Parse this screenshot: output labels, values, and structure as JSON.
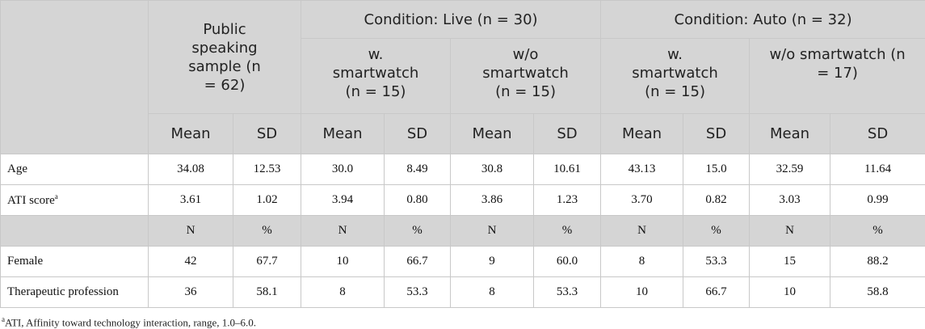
{
  "table": {
    "corner": "",
    "groups": [
      "Public speaking sample (n = 62)",
      "Condition: Live (n = 30)",
      "Condition: Auto (n = 32)"
    ],
    "subgroups": [
      "w. smartwatch (n = 15)",
      "w/o smartwatch (n = 15)",
      "w. smartwatch (n = 15)",
      "w/o smartwatch (n = 17)"
    ],
    "stats": [
      "Mean",
      "SD",
      "Mean",
      "SD",
      "Mean",
      "SD",
      "Mean",
      "SD",
      "Mean",
      "SD"
    ],
    "rows": [
      [
        "Age",
        "34.08",
        "12.53",
        "30.0",
        "8.49",
        "30.8",
        "10.61",
        "43.13",
        "15.0",
        "32.59",
        "11.64"
      ],
      [
        "ATI score",
        "3.61",
        "1.02",
        "3.94",
        "0.80",
        "3.86",
        "1.23",
        "3.70",
        "0.82",
        "3.03",
        "0.99"
      ],
      [
        "",
        "N",
        "%",
        "N",
        "%",
        "N",
        "%",
        "N",
        "%",
        "N",
        "%"
      ],
      [
        "Female",
        "42",
        "67.7",
        "10",
        "66.7",
        "9",
        "60.0",
        "8",
        "53.3",
        "15",
        "88.2"
      ],
      [
        "Therapeutic profession",
        "36",
        "58.1",
        "8",
        "53.3",
        "8",
        "53.3",
        "10",
        "66.7",
        "10",
        "58.8"
      ]
    ],
    "ati_marker": "a",
    "footnote": {
      "marker": "a",
      "text": "ATI, Affinity toward technology interaction, range, 1.0–6.0."
    }
  }
}
